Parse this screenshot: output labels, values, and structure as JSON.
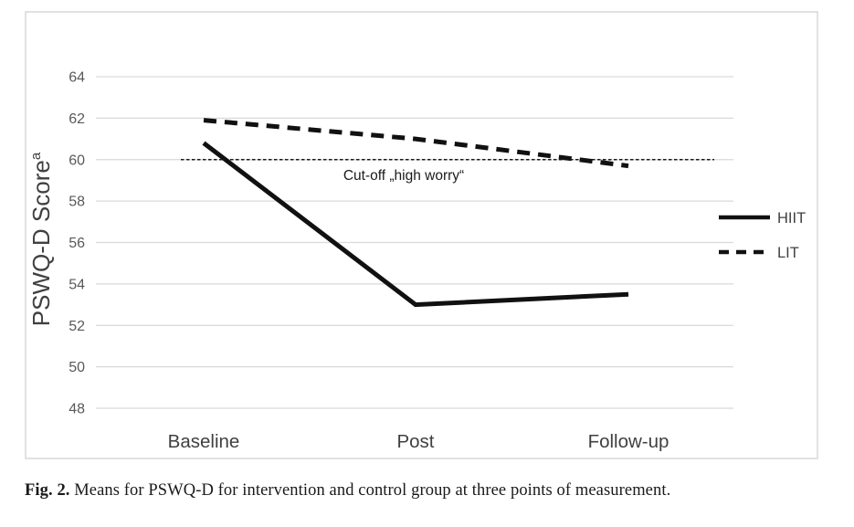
{
  "chart_data": {
    "type": "line",
    "categories": [
      "Baseline",
      "Post",
      "Follow-up"
    ],
    "series": [
      {
        "name": "HIIT",
        "style": "solid",
        "values": [
          60.8,
          53.0,
          53.5
        ]
      },
      {
        "name": "LIT",
        "style": "dashed",
        "values": [
          61.9,
          61.0,
          59.7
        ]
      }
    ],
    "title": "",
    "xlabel": "",
    "ylabel": "PSWQ-D Score",
    "ylabel_superscript": "a",
    "ylim": [
      48,
      64
    ],
    "yticks": [
      64,
      62,
      60,
      58,
      56,
      54,
      52,
      50,
      48
    ],
    "grid": true,
    "legend_position": "right-outside",
    "reference_line": {
      "value": 60,
      "label": "Cut-off „high worry“",
      "style": "dotted"
    }
  },
  "caption": {
    "label": "Fig. 2.",
    "text": "Means for PSWQ-D for intervention and control group at three points of measurement."
  },
  "colors": {
    "series_line": "#111111",
    "reference_line": "#1a1a1a",
    "gridline": "#d9d9d9",
    "frame": "#d6d6d6",
    "tick_text": "#595959",
    "axis_text": "#404040",
    "annotation_text": "#1a1a1a",
    "background": "#ffffff"
  }
}
